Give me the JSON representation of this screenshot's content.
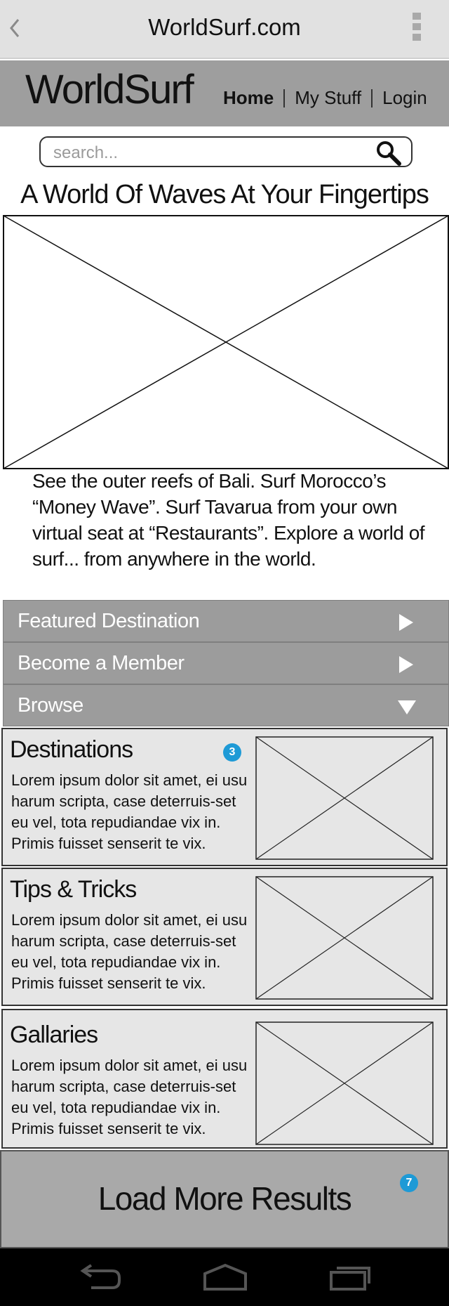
{
  "browser": {
    "title": "WorldSurf.com",
    "back_icon": "chevron-left-icon",
    "menu_icon": "kebab-menu-icon"
  },
  "header": {
    "logo": "WorldSurf",
    "nav": [
      {
        "label": "Home",
        "active": true
      },
      {
        "label": "My Stuff",
        "active": false
      },
      {
        "label": "Login",
        "active": false
      }
    ]
  },
  "search": {
    "placeholder": "search...",
    "icon": "search-icon"
  },
  "hero": {
    "headline": "A World Of Waves At Your Fingertips",
    "image": "image-placeholder",
    "description": "See the outer reefs of Bali. Surf Morocco’s “Money Wave”. Surf Tavarua from your own virtual seat at “Restaurants”. Explore a world of surf... from anywhere in the world."
  },
  "accordion": [
    {
      "label": "Featured Destination",
      "state": "collapsed",
      "icon": "triangle-right-icon"
    },
    {
      "label": "Become a Member",
      "state": "collapsed",
      "icon": "triangle-right-icon"
    },
    {
      "label": "Browse",
      "state": "expanded",
      "icon": "triangle-down-icon"
    }
  ],
  "browse_items": [
    {
      "title": "Destinations",
      "body": "Lorem ipsum dolor sit amet, ei usu harum scripta, case deterruis-set eu vel, tota repudiandae vix in. Primis fuisset senserit te vix.",
      "badge": "3"
    },
    {
      "title": "Tips & Tricks",
      "body": "Lorem ipsum dolor sit amet, ei usu harum scripta, case deterruis-set eu vel, tota repudiandae vix in. Primis fuisset senserit te vix."
    },
    {
      "title": "Gallaries",
      "body": "Lorem ipsum dolor sit amet, ei usu harum scripta, case deterruis-set eu vel, tota repudiandae vix in. Primis fuisset senserit te vix."
    }
  ],
  "load_more": {
    "label": "Load More Results",
    "badge": "7"
  },
  "system_nav": {
    "icons": [
      "back-icon",
      "home-icon",
      "recent-apps-icon"
    ]
  },
  "colors": {
    "badge": "#1e9ad6",
    "header_bg": "#9e9e9e",
    "accordion_bg": "#9c9c9c",
    "card_bg": "#e6e6e6"
  }
}
